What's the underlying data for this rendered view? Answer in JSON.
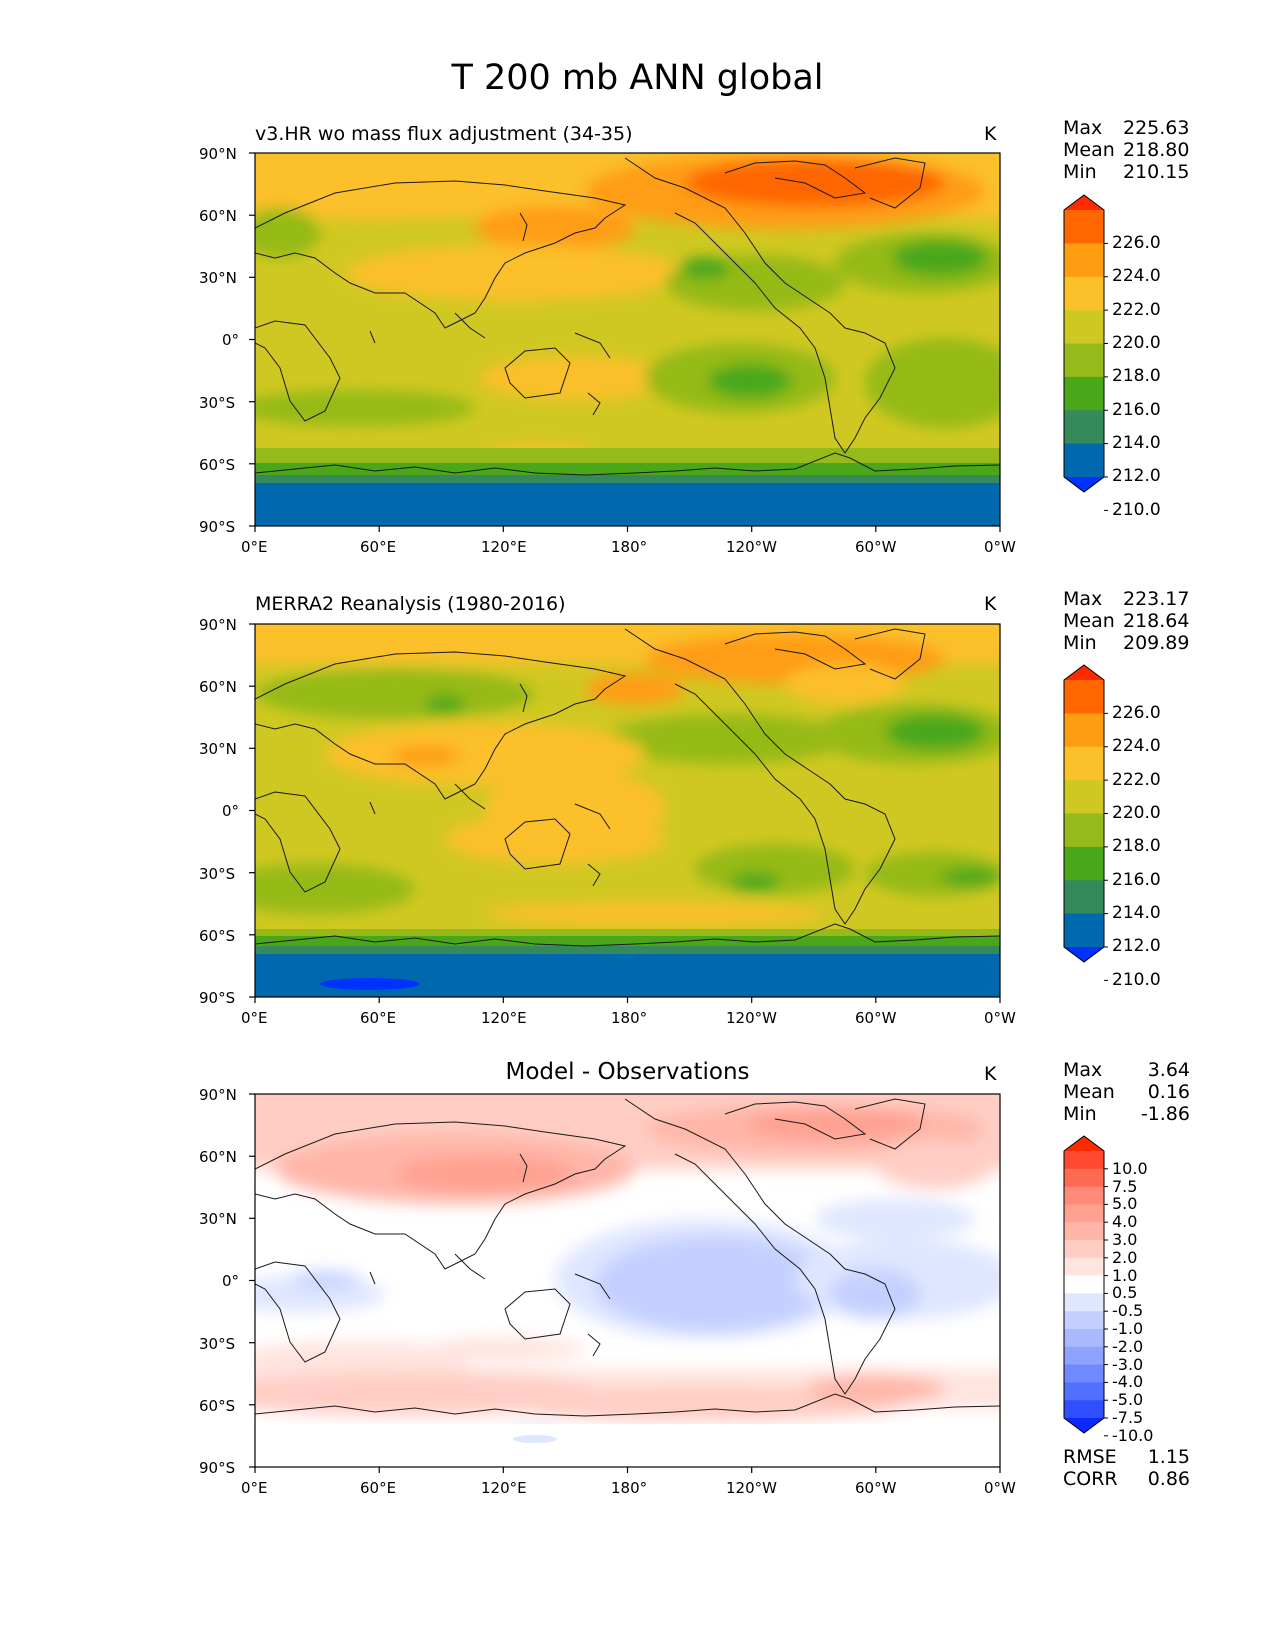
{
  "suptitle": "T 200 mb ANN global",
  "lat_ticks": [
    "90°N",
    "60°N",
    "30°N",
    "0°",
    "30°S",
    "60°S",
    "90°S"
  ],
  "lon_ticks": [
    "0°E",
    "60°E",
    "120°E",
    "180°",
    "120°W",
    "60°W",
    "0°W"
  ],
  "panels": [
    {
      "title": "v3.HR wo mass flux adjustment (34-35)",
      "units": "K",
      "stats": {
        "max_label": "Max",
        "max": "225.63",
        "mean_label": "Mean",
        "mean": "218.80",
        "min_label": "Min",
        "min": "210.15"
      },
      "colorbar": {
        "labels": [
          "226.0",
          "224.0",
          "222.0",
          "220.0",
          "218.0",
          "216.0",
          "214.0",
          "212.0",
          "210.0"
        ],
        "colors": [
          "#ff2a00",
          "#ff6600",
          "#ff9d12",
          "#fbc02a",
          "#d0c822",
          "#95ba19",
          "#4aa71a",
          "#348a5b",
          "#0068ac",
          "#0032ff"
        ]
      }
    },
    {
      "title": "MERRA2 Reanalysis (1980-2016)",
      "units": "K",
      "stats": {
        "max_label": "Max",
        "max": "223.17",
        "mean_label": "Mean",
        "mean": "218.64",
        "min_label": "Min",
        "min": "209.89"
      },
      "colorbar": {
        "labels": [
          "226.0",
          "224.0",
          "222.0",
          "220.0",
          "218.0",
          "216.0",
          "214.0",
          "212.0",
          "210.0"
        ],
        "colors": [
          "#ff2a00",
          "#ff6600",
          "#ff9d12",
          "#fbc02a",
          "#d0c822",
          "#95ba19",
          "#4aa71a",
          "#348a5b",
          "#0068ac",
          "#0032ff"
        ]
      }
    },
    {
      "title": "Model - Observations",
      "units": "K",
      "stats": {
        "max_label": "Max",
        "max": "3.64",
        "mean_label": "Mean",
        "mean": "0.16",
        "min_label": "Min",
        "min": "-1.86"
      },
      "extra": {
        "rmse_label": "RMSE",
        "rmse": "1.15",
        "corr_label": "CORR",
        "corr": "0.86"
      },
      "colorbar": {
        "labels": [
          "10.0",
          "7.5",
          "5.0",
          "4.0",
          "3.0",
          "2.0",
          "1.0",
          "0.5",
          "-0.5",
          "-1.0",
          "-2.0",
          "-3.0",
          "-4.0",
          "-5.0",
          "-7.5",
          "-10.0"
        ],
        "colors": [
          "#ff2a00",
          "#ff4a30",
          "#ff6a55",
          "#ff8a78",
          "#ffa090",
          "#ffb6a8",
          "#ffcdc4",
          "#ffe4df",
          "#ffffff",
          "#dfe6ff",
          "#c4d0ff",
          "#aab9ff",
          "#8fa2ff",
          "#7188ff",
          "#5470ff",
          "#3050ff",
          "#0a28ff"
        ]
      }
    }
  ]
}
